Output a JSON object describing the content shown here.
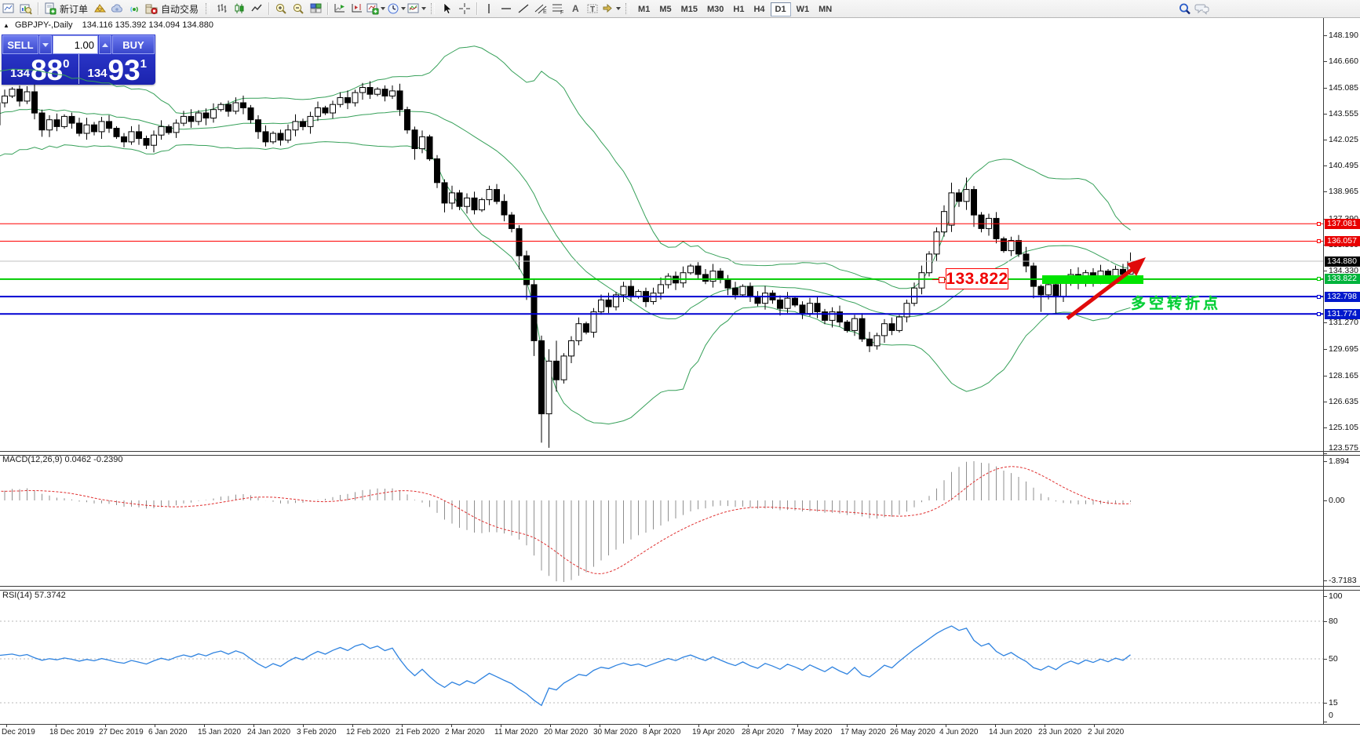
{
  "toolbar": {
    "new_order_label": "新订单",
    "autotrading_label": "自动交易",
    "timeframes": {
      "items": [
        "M1",
        "M5",
        "M15",
        "M30",
        "H1",
        "H4",
        "D1",
        "W1",
        "MN"
      ],
      "active": "D1"
    }
  },
  "chart_header": {
    "collapse_icon": "▲",
    "symbol": "GBPJPY-,Daily",
    "ohlc": "134.116 135.392 134.094 134.880"
  },
  "trade_panel": {
    "sell_label": "SELL",
    "buy_label": "BUY",
    "volume": "1.00",
    "sell": {
      "prefix": "134",
      "big": "88",
      "sup": "0"
    },
    "buy": {
      "prefix": "134",
      "big": "93",
      "sup": "1"
    }
  },
  "price_axis": {
    "ticks": [
      "148.190",
      "146.660",
      "145.085",
      "143.555",
      "142.025",
      "140.495",
      "138.965",
      "137.390",
      "135.860",
      "134.330",
      "131.270",
      "129.695",
      "128.165",
      "126.635",
      "125.105",
      "123.575"
    ],
    "labels": [
      {
        "price": 137.081,
        "text": "137.081",
        "bg": "#e80000"
      },
      {
        "price": 136.057,
        "text": "136.057",
        "bg": "#e80000"
      },
      {
        "price": 134.88,
        "text": "134.880",
        "bg": "#000000"
      },
      {
        "price": 133.822,
        "text": "133.822",
        "bg": "#00b43c"
      },
      {
        "price": 132.798,
        "text": "132.798",
        "bg": "#0018cc"
      },
      {
        "price": 131.774,
        "text": "131.774",
        "bg": "#0018cc"
      }
    ]
  },
  "hlines": [
    {
      "price": 137.081,
      "color": "#ff0000",
      "w": 1,
      "anchor": true
    },
    {
      "price": 136.057,
      "color": "#ff0000",
      "w": 1,
      "anchor": true
    },
    {
      "price": 134.88,
      "color": "#c0c0c0",
      "w": 1,
      "anchor": false
    },
    {
      "price": 133.822,
      "color": "#00cc00",
      "w": 2,
      "anchor": true
    },
    {
      "price": 132.798,
      "color": "#0000d2",
      "w": 2,
      "anchor": true
    },
    {
      "price": 131.774,
      "color": "#0000d2",
      "w": 2,
      "anchor": true
    }
  ],
  "annotations": {
    "price_box_text": "133.822",
    "zone_color": "#00e400",
    "arrow_color": "#e00a0a",
    "trend_text": "多空转折点",
    "trend_text_color": "#00cc33"
  },
  "macd_panel": {
    "label": "MACD(12,26,9)",
    "values": "0.0462 -0.2390",
    "axis": [
      "1.894",
      "0.00",
      "-3.7183"
    ]
  },
  "rsi_panel": {
    "label": "RSI(14)",
    "value": "57.3742",
    "axis_values": [
      100,
      80,
      50,
      15,
      0
    ],
    "grid_levels": [
      80,
      50,
      15
    ]
  },
  "date_axis": [
    "Dec 2019",
    "18 Dec 2019",
    "27 Dec 2019",
    "6 Jan 2020",
    "15 Jan 2020",
    "24 Jan 2020",
    "3 Feb 2020",
    "12 Feb 2020",
    "21 Feb 2020",
    "2 Mar 2020",
    "11 Mar 2020",
    "20 Mar 2020",
    "30 Mar 2020",
    "8 Apr 2020",
    "19 Apr 2020",
    "28 Apr 2020",
    "7 May 2020",
    "17 May 2020",
    "26 May 2020",
    "4 Jun 2020",
    "14 Jun 2020",
    "23 Jun 2020",
    "2 Jul 2020"
  ],
  "chart_data": {
    "type": "candlestick",
    "symbol": "GBPJPY-",
    "timeframe": "Daily",
    "indicator_labels": [
      "MACD(12,26,9)",
      "RSI(14)"
    ],
    "warmup_count": 20,
    "closes": [
      142.0,
      144.5,
      141.8,
      145.0,
      142.5,
      144.8,
      141.9,
      144.6,
      142.2,
      145.2,
      142.8,
      144.9,
      142.1,
      144.4,
      142.6,
      145.1,
      142.3,
      144.7,
      142.9,
      144.2,
      144.6,
      145.0,
      144.3,
      144.85,
      143.6,
      142.6,
      143.2,
      142.8,
      143.4,
      143.0,
      142.4,
      142.9,
      142.5,
      143.1,
      142.7,
      142.2,
      141.9,
      142.5,
      142.1,
      141.7,
      142.3,
      142.8,
      142.45,
      143.0,
      143.4,
      143.1,
      143.6,
      143.3,
      143.8,
      144.1,
      143.7,
      144.2,
      143.9,
      143.2,
      142.5,
      141.9,
      142.4,
      142.0,
      142.6,
      143.1,
      142.8,
      143.4,
      143.9,
      143.6,
      144.1,
      144.5,
      144.2,
      144.8,
      145.1,
      144.7,
      145.0,
      144.6,
      144.9,
      143.8,
      142.6,
      141.5,
      142.2,
      140.9,
      139.5,
      138.3,
      138.9,
      138.1,
      138.6,
      137.9,
      138.5,
      139.1,
      138.4,
      137.6,
      136.8,
      135.2,
      133.5,
      130.2,
      125.9,
      129.0,
      127.9,
      129.3,
      130.2,
      131.2,
      130.7,
      131.9,
      132.6,
      132.2,
      132.9,
      133.4,
      132.8,
      133.1,
      132.5,
      133.0,
      133.5,
      134.0,
      133.6,
      134.2,
      134.6,
      134.1,
      133.7,
      134.3,
      133.8,
      133.3,
      132.9,
      133.4,
      132.8,
      132.4,
      133.0,
      132.6,
      132.1,
      132.7,
      132.3,
      131.8,
      132.4,
      131.9,
      131.4,
      131.9,
      131.3,
      130.8,
      131.5,
      130.3,
      129.9,
      130.5,
      131.2,
      130.8,
      131.6,
      132.4,
      133.3,
      134.2,
      135.3,
      136.6,
      137.8,
      138.9,
      138.4,
      139.1,
      137.6,
      136.8,
      137.4,
      136.2,
      135.5,
      136.1,
      135.3,
      134.6,
      133.4,
      132.9,
      133.5,
      132.8,
      133.6,
      134.1,
      133.6,
      134.2,
      133.8,
      134.3,
      133.9,
      134.4,
      134.1,
      134.88
    ],
    "overrides": {
      "25": [
        143.6,
        143.8,
        142.2,
        142.6
      ],
      "75": [
        142.6,
        142.8,
        140.85,
        141.5
      ],
      "79": [
        139.5,
        139.7,
        137.75,
        138.3
      ],
      "89": [
        136.8,
        137.0,
        134.4,
        135.2
      ],
      "90": [
        135.2,
        135.5,
        132.6,
        133.5
      ],
      "91": [
        133.5,
        133.8,
        129.3,
        130.2
      ],
      "92": [
        130.2,
        130.5,
        124.2,
        125.9
      ],
      "93": [
        125.9,
        129.7,
        123.9,
        129.0
      ],
      "94": [
        129.0,
        130.2,
        127.2,
        127.9
      ],
      "147": [
        137.0,
        139.5,
        136.6,
        138.9
      ],
      "149": [
        138.4,
        139.8,
        137.9,
        139.1
      ],
      "150": [
        139.1,
        139.3,
        136.9,
        137.6
      ],
      "158": [
        134.6,
        134.8,
        132.7,
        133.4
      ],
      "159": [
        133.4,
        133.5,
        131.9,
        132.9
      ],
      "161": [
        133.5,
        133.65,
        131.8,
        132.8
      ],
      "171": [
        134.116,
        135.392,
        134.094,
        134.88
      ]
    }
  }
}
